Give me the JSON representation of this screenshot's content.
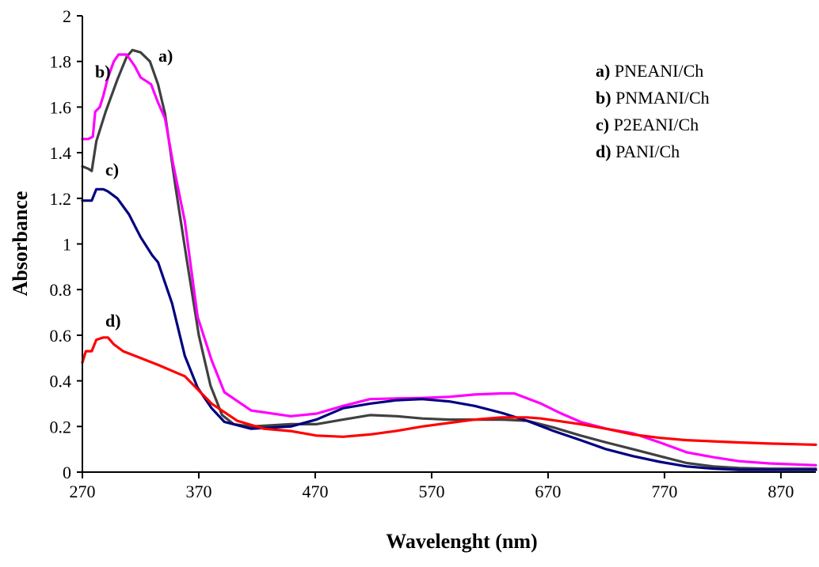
{
  "chart_data": {
    "type": "line",
    "title": "",
    "xlabel": "Wavelenght (nm)",
    "ylabel": "Absorbance",
    "xlim": [
      270,
      900
    ],
    "ylim": [
      0,
      2
    ],
    "xticks": [
      270,
      370,
      470,
      570,
      670,
      770,
      870
    ],
    "yticks": [
      0,
      0.2,
      0.4,
      0.6,
      0.8,
      1,
      1.2,
      1.4,
      1.6,
      1.8,
      2
    ],
    "grid": false,
    "legend_position": "top-right",
    "legend": [
      {
        "letter": "a)",
        "name": "PNEANI/Ch"
      },
      {
        "letter": "b)",
        "name": "PNMANI/Ch"
      },
      {
        "letter": "c)",
        "name": "P2EANI/Ch"
      },
      {
        "letter": "d)",
        "name": "PANI/Ch"
      }
    ],
    "series": [
      {
        "name": "a) PNEANI/Ch",
        "label": "a)",
        "color": "#404040",
        "x": [
          270,
          275,
          278,
          282,
          290,
          300,
          308,
          313,
          320,
          328,
          335,
          341,
          350,
          360,
          370,
          380,
          390,
          400,
          415,
          449,
          471,
          494,
          517,
          540,
          562,
          585,
          607,
          630,
          652,
          675,
          698,
          720,
          743,
          766,
          789,
          812,
          834,
          860,
          900
        ],
        "y": [
          1.34,
          1.33,
          1.32,
          1.45,
          1.58,
          1.72,
          1.82,
          1.85,
          1.84,
          1.8,
          1.7,
          1.57,
          1.25,
          0.92,
          0.6,
          0.38,
          0.25,
          0.21,
          0.2,
          0.21,
          0.21,
          0.23,
          0.25,
          0.245,
          0.235,
          0.23,
          0.23,
          0.23,
          0.225,
          0.195,
          0.16,
          0.13,
          0.1,
          0.07,
          0.04,
          0.025,
          0.018,
          0.015,
          0.015
        ]
      },
      {
        "name": "b) PNMANI/Ch",
        "label": "b)",
        "color": "#ff00ff",
        "x": [
          270,
          275,
          279,
          281,
          285,
          288,
          292,
          297,
          301,
          308,
          315,
          320,
          329,
          335,
          341,
          348,
          358,
          369,
          381,
          392,
          415,
          449,
          471,
          494,
          517,
          540,
          562,
          585,
          607,
          630,
          641,
          664,
          680,
          698,
          720,
          743,
          766,
          789,
          812,
          834,
          860,
          900
        ],
        "y": [
          1.46,
          1.46,
          1.47,
          1.58,
          1.6,
          1.65,
          1.73,
          1.8,
          1.83,
          1.83,
          1.78,
          1.73,
          1.7,
          1.62,
          1.55,
          1.35,
          1.1,
          0.68,
          0.49,
          0.35,
          0.27,
          0.245,
          0.256,
          0.29,
          0.32,
          0.323,
          0.325,
          0.33,
          0.34,
          0.345,
          0.345,
          0.3,
          0.26,
          0.22,
          0.19,
          0.17,
          0.13,
          0.087,
          0.065,
          0.048,
          0.038,
          0.03
        ]
      },
      {
        "name": "c) P2EANI/Ch",
        "label": "c)",
        "color": "#000080",
        "x": [
          270,
          275,
          278,
          282,
          288,
          292,
          300,
          310,
          320,
          330,
          335,
          347,
          358,
          369,
          381,
          392,
          415,
          449,
          471,
          494,
          517,
          540,
          562,
          585,
          607,
          630,
          652,
          675,
          698,
          720,
          743,
          766,
          789,
          812,
          834,
          900
        ],
        "y": [
          1.19,
          1.19,
          1.19,
          1.24,
          1.24,
          1.23,
          1.2,
          1.13,
          1.03,
          0.95,
          0.92,
          0.74,
          0.51,
          0.37,
          0.28,
          0.22,
          0.19,
          0.2,
          0.23,
          0.28,
          0.3,
          0.315,
          0.32,
          0.31,
          0.29,
          0.26,
          0.225,
          0.18,
          0.14,
          0.1,
          0.07,
          0.045,
          0.025,
          0.015,
          0.01,
          0.01
        ]
      },
      {
        "name": "d) PANI/Ch",
        "label": "d)",
        "color": "#ff0000",
        "x": [
          270,
          273,
          278,
          282,
          288,
          292,
          297,
          305,
          320,
          335,
          358,
          381,
          403,
          426,
          449,
          471,
          494,
          517,
          539,
          562,
          584,
          607,
          630,
          652,
          664,
          698,
          720,
          743,
          766,
          789,
          812,
          834,
          860,
          900
        ],
        "y": [
          0.48,
          0.53,
          0.53,
          0.58,
          0.59,
          0.59,
          0.56,
          0.53,
          0.5,
          0.47,
          0.42,
          0.3,
          0.225,
          0.19,
          0.18,
          0.16,
          0.155,
          0.165,
          0.18,
          0.2,
          0.215,
          0.23,
          0.24,
          0.24,
          0.235,
          0.21,
          0.19,
          0.165,
          0.15,
          0.14,
          0.135,
          0.13,
          0.125,
          0.12
        ]
      }
    ]
  }
}
